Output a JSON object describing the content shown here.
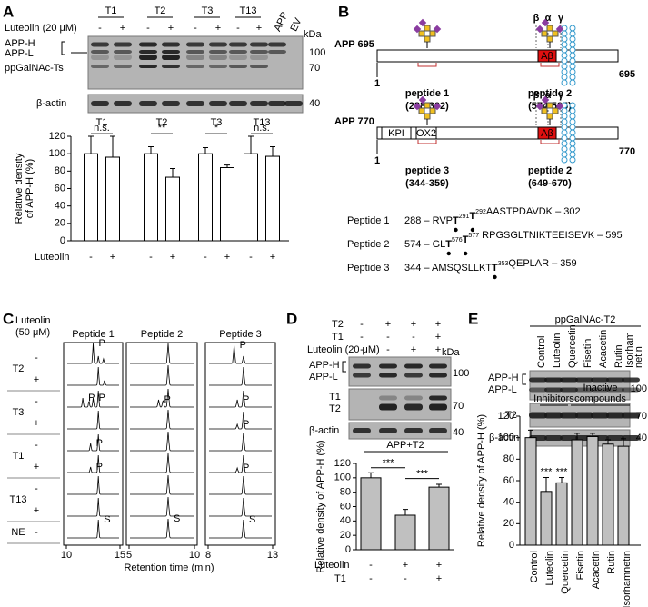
{
  "panels": {
    "A": {
      "letter": "A",
      "treatment": "Luteolin (20 μM)",
      "groups": [
        "T1",
        "T2",
        "T3",
        "T13"
      ],
      "signs": [
        "-",
        "+",
        "-",
        "+",
        "-",
        "+",
        "-",
        "+"
      ],
      "controls": [
        "APP",
        "EV"
      ],
      "kda": "kDa",
      "bands": {
        "app_h": "APP-H",
        "app_l": "APP-L",
        "t": "ppGalNAc-Ts",
        "actin": "β-actin"
      },
      "mw": [
        "100",
        "70",
        "40"
      ]
    },
    "B": {
      "letter": "B",
      "isoforms": [
        {
          "name": "APP 695",
          "start": "1",
          "end": "695",
          "peptides": [
            {
              "name": "peptide 1",
              "range": "(288-302)"
            },
            {
              "name": "peptide 2",
              "range": "(574-595)"
            }
          ]
        },
        {
          "name": "APP 770",
          "start": "1",
          "end": "770",
          "domains": [
            "KPI",
            "OX2"
          ],
          "peptides": [
            {
              "name": "peptide 3",
              "range": "(344-359)"
            },
            {
              "name": "peptide 2",
              "range": "(649-670)"
            }
          ]
        }
      ],
      "abeta": "Aβ",
      "secretases": [
        "β",
        "α",
        "γ"
      ],
      "sequences": [
        {
          "label": "Peptide 1",
          "parts": [
            {
              "text": "288 – RVP"
            },
            {
              "text": "T",
              "site": "291"
            },
            {
              "text": "T",
              "site": "292"
            },
            {
              "text": "AASTPDAVDK – 302"
            }
          ]
        },
        {
          "label": "Peptide 2",
          "parts": [
            {
              "text": "574 – GL"
            },
            {
              "text": "T",
              "site": "576"
            },
            {
              "text": "T",
              "site": "577"
            },
            {
              "text": " RPGSGLTNIKTEEISEVK – 595"
            }
          ]
        },
        {
          "label": "Peptide 3",
          "parts": [
            {
              "text": "344 – AMSQSLLKT"
            },
            {
              "text": "T",
              "site": "353"
            },
            {
              "text": "QEPLAR – 359"
            }
          ]
        }
      ]
    },
    "C": {
      "letter": "C",
      "treatment": [
        "Luteolin",
        "(50 μM)"
      ],
      "columns": [
        {
          "title": "Peptide 1",
          "ticks": [
            "10",
            "15"
          ]
        },
        {
          "title": "Peptide 2",
          "ticks": [
            "5",
            "10"
          ]
        },
        {
          "title": "Peptide 3",
          "ticks": [
            "8",
            "13"
          ]
        }
      ],
      "rows": [
        {
          "label": "T2",
          "signs": [
            "-",
            "+"
          ]
        },
        {
          "label": "T3",
          "signs": [
            "-",
            "+"
          ]
        },
        {
          "label": "T1",
          "signs": [
            "-",
            "+"
          ]
        },
        {
          "label": "T13",
          "signs": [
            "-",
            "+"
          ]
        },
        {
          "label": "NE",
          "signs": [
            "-"
          ]
        }
      ],
      "product": "P",
      "substrate": "S",
      "xlabel": "Retention time (min)"
    },
    "D": {
      "letter": "D",
      "conditions": [
        {
          "name": "T2",
          "signs": [
            "-",
            "+",
            "+",
            "+"
          ]
        },
        {
          "name": "T1",
          "signs": [
            "-",
            "-",
            "-",
            "+"
          ]
        },
        {
          "name": "Luteolin (20 μM)",
          "signs": [
            "-",
            "-",
            "+",
            "+"
          ]
        }
      ],
      "kda": "kDa",
      "bands": {
        "app_h": "APP-H",
        "app_l": "APP-L",
        "t1": "T1",
        "t2": "T2",
        "actin": "β-actin"
      },
      "mw": [
        "100",
        "70",
        "40"
      ]
    },
    "E": {
      "letter": "E",
      "enzyme": "ppGalNAc-T2",
      "lanes": [
        [
          "Control"
        ],
        [
          "Luteolin"
        ],
        [
          "Quercetin"
        ],
        [
          "Fisetin"
        ],
        [
          "Acacetin"
        ],
        [
          "Rutin"
        ],
        [
          "Isorham",
          "netin"
        ]
      ],
      "bands": {
        "app_h": "APP-H",
        "app_l": "APP-L",
        "t2": "T2",
        "actin": "β-actin"
      },
      "mw": [
        "100",
        "70",
        "40"
      ]
    }
  },
  "chart_data": [
    {
      "type": "bar",
      "groups": [
        "T1",
        "T2",
        "T3",
        "T13"
      ],
      "categories": [
        "-",
        "+",
        "-",
        "+",
        "-",
        "+",
        "-",
        "+"
      ],
      "values": [
        100,
        96,
        100,
        73,
        100,
        84,
        100,
        97
      ],
      "errors": [
        20,
        24,
        8,
        10,
        7,
        3,
        20,
        11
      ],
      "significance": [
        "n.s.",
        "**",
        "*",
        "n.s."
      ],
      "xlabel": "Luteolin",
      "ylabel": [
        "Relative density",
        "of APP-H (%)"
      ],
      "ylim": [
        0,
        120
      ],
      "yticks": [
        0,
        20,
        40,
        60,
        80,
        100,
        120
      ],
      "color": "#ffffff",
      "edgecolor": "#000000"
    },
    {
      "type": "bar",
      "title": "APP+T2",
      "conditions": [
        {
          "name": "Luteolin",
          "signs": [
            "-",
            "+",
            "+"
          ]
        },
        {
          "name": "T1",
          "signs": [
            "-",
            "-",
            "+"
          ]
        }
      ],
      "values": [
        100,
        48,
        87
      ],
      "errors": [
        7,
        8,
        4
      ],
      "significance": [
        "***",
        "***"
      ],
      "ylabel": [
        "Relative density of APP-H (%)"
      ],
      "ylim": [
        0,
        120
      ],
      "yticks": [
        0,
        20,
        40,
        60,
        80,
        100,
        120
      ],
      "color": "#c0c0c0",
      "edgecolor": "#000000"
    },
    {
      "type": "bar",
      "categories": [
        "Control",
        "Luteolin",
        "Quercetin",
        "Fisetin",
        "Acacetin",
        "Rutin",
        "Isorhamnetin"
      ],
      "values": [
        100,
        50,
        58,
        98,
        101,
        94,
        92
      ],
      "errors": [
        7,
        13,
        5,
        6,
        3,
        4,
        7
      ],
      "groups": [
        [
          "Inhibitors"
        ],
        [
          "Inactive",
          "compounds"
        ]
      ],
      "significance": [
        "***",
        "***"
      ],
      "ylabel": [
        "Relative density of APP-H (%)"
      ],
      "ylim": [
        0,
        120
      ],
      "yticks": [
        0,
        20,
        40,
        60,
        80,
        100,
        120
      ],
      "color": "#c0c0c0",
      "edgecolor": "#000000"
    }
  ]
}
